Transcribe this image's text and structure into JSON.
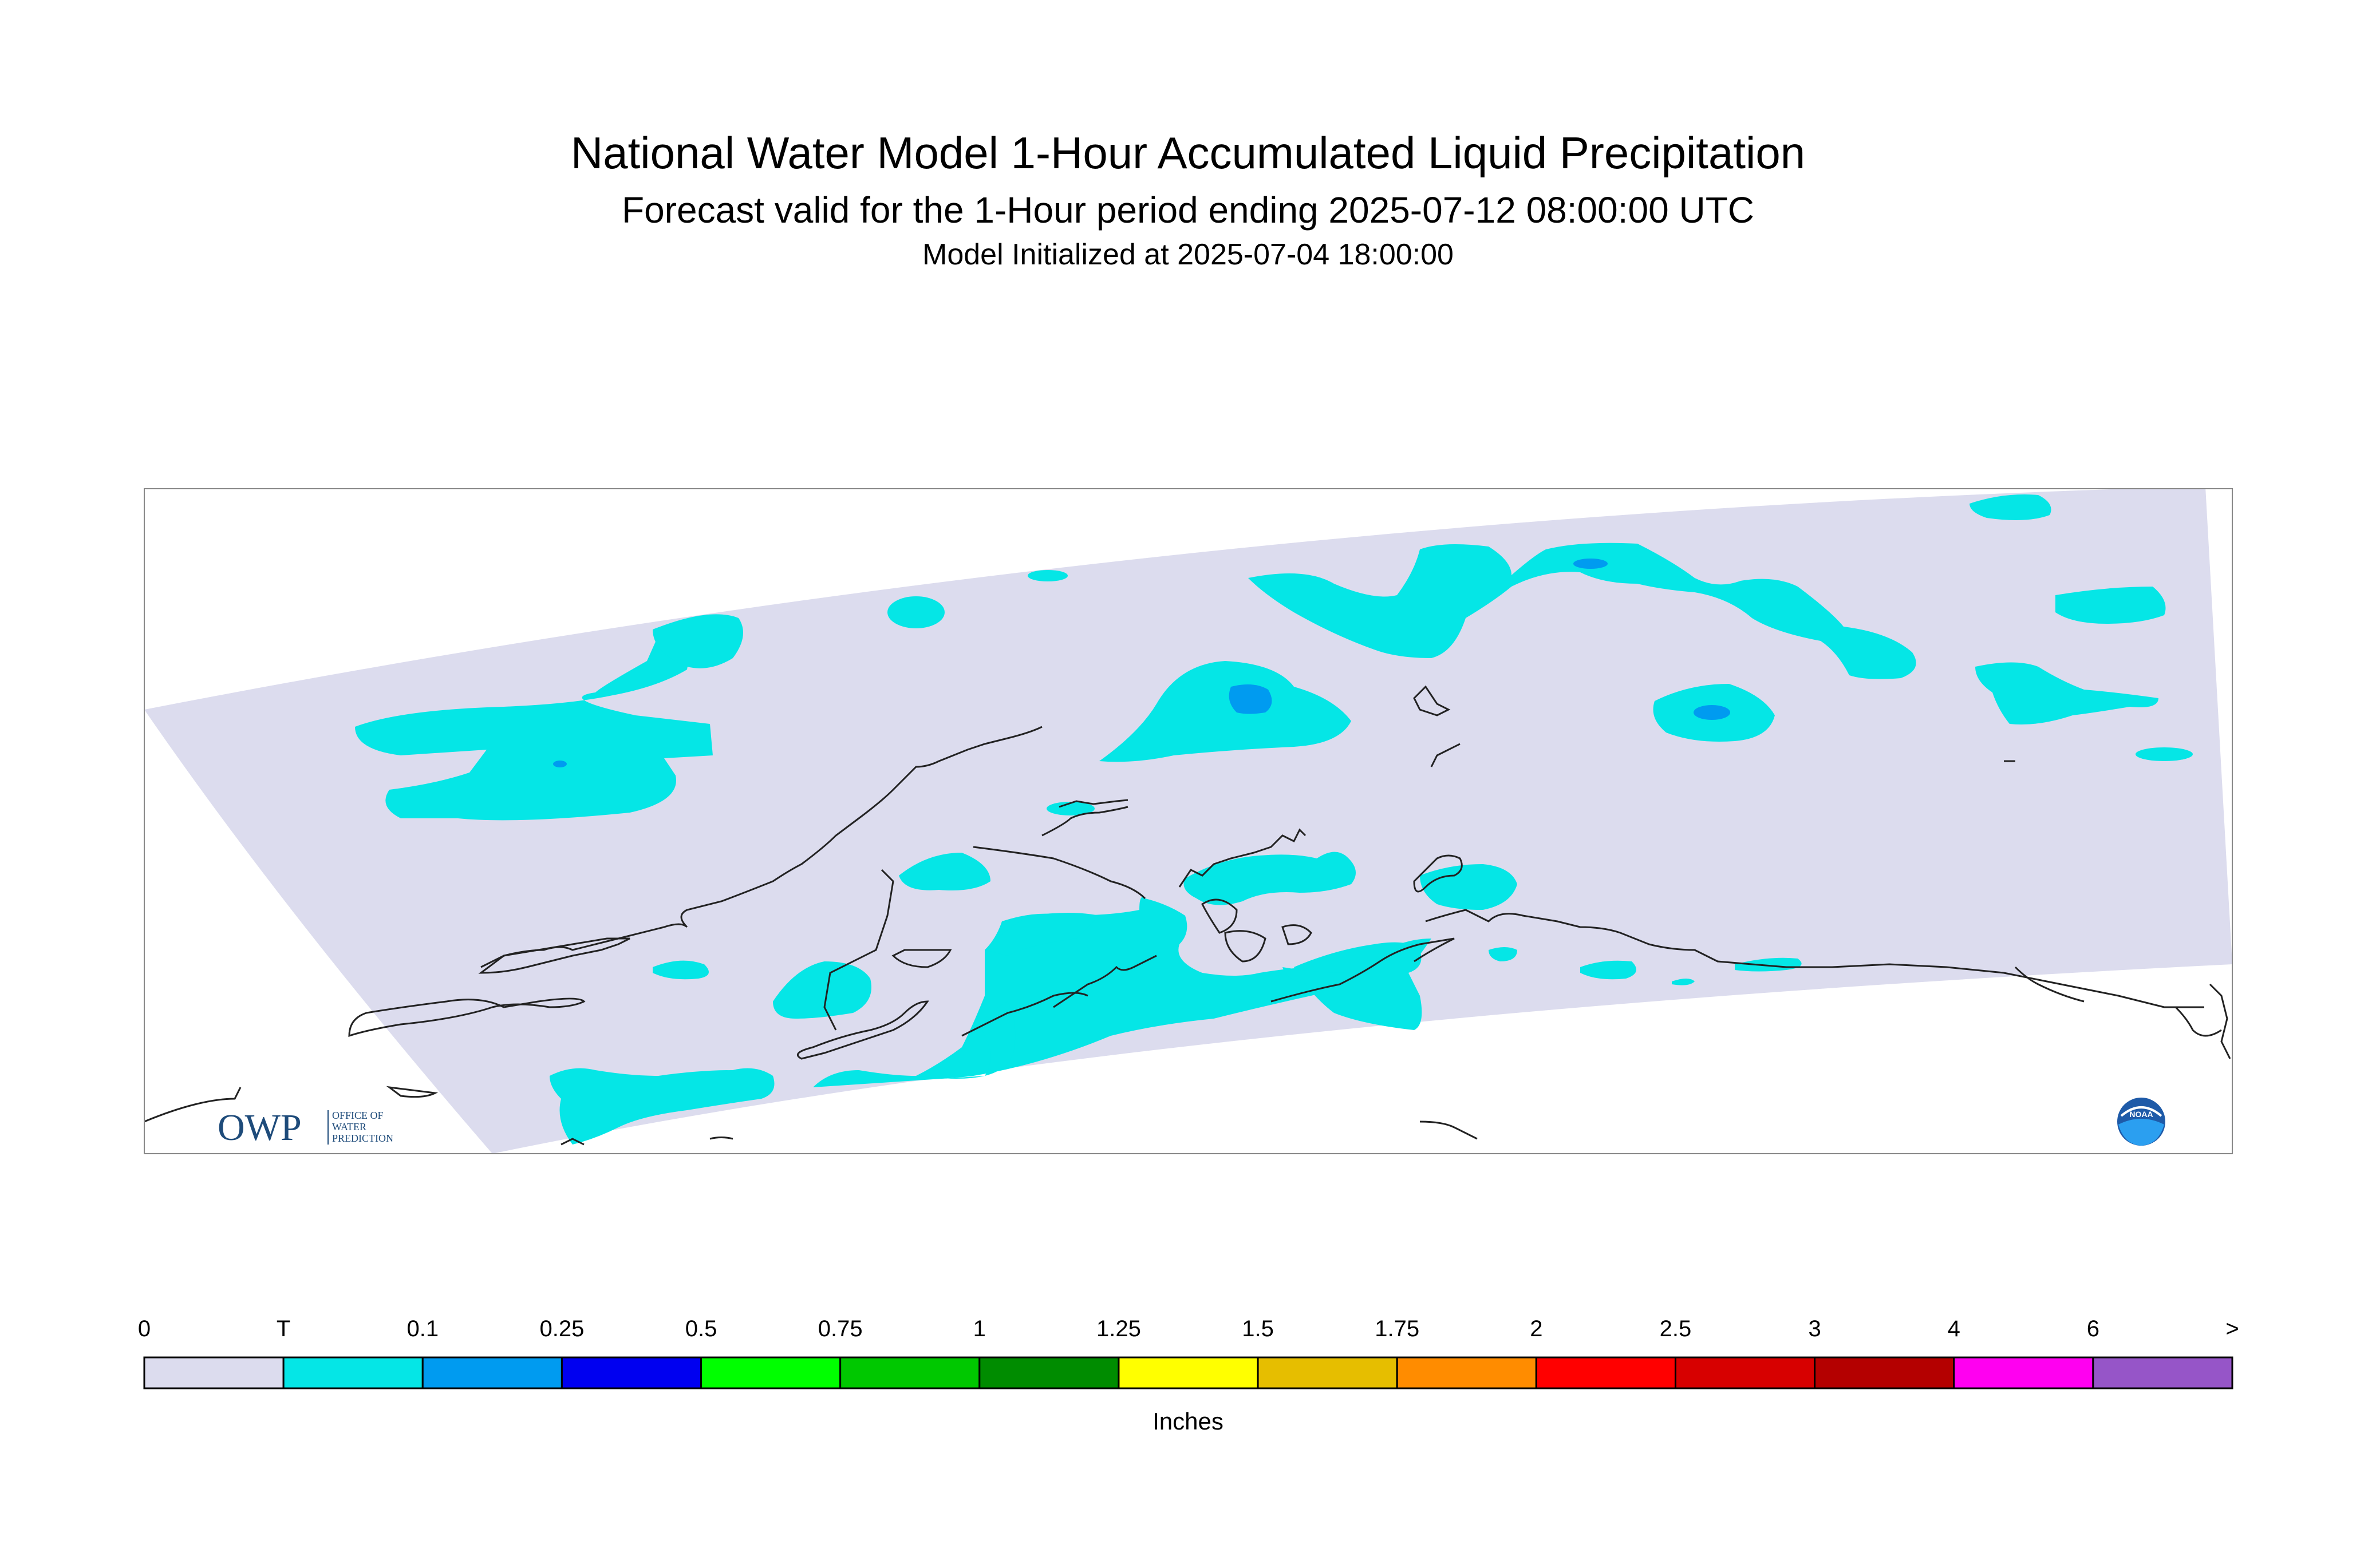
{
  "title": "National Water Model 1-Hour Accumulated Liquid Precipitation",
  "subtitle": "Forecast valid for the 1-Hour period ending 2025-07-12 08:00:00 UTC",
  "init_line": "Model Initialized at 2025-07-04 18:00:00",
  "logos": {
    "owp": {
      "text": "OWP",
      "sub": [
        "OFFICE OF",
        "WATER",
        "PREDICTION"
      ]
    },
    "noaa": {
      "text": "NOAA"
    }
  },
  "legend": {
    "units": "Inches",
    "labels": [
      "0",
      "T",
      "0.1",
      "0.25",
      "0.5",
      "0.75",
      "1",
      "1.25",
      "1.5",
      "1.75",
      "2",
      "2.5",
      "3",
      "4",
      "6",
      ">"
    ],
    "colors": [
      "#dcdcee",
      "#05e6e6",
      "#009bf0",
      "#0000f0",
      "#00ff00",
      "#00c800",
      "#008c00",
      "#ffff00",
      "#e6be00",
      "#ff8c00",
      "#ff0000",
      "#d70000",
      "#b40000",
      "#ff00f0",
      "#9655c8"
    ]
  },
  "map_colors": {
    "domain": "#dcdcee",
    "trace": "#05e6e6",
    "light": "#009bf0",
    "coast": "#222222",
    "frame": "#888888"
  }
}
